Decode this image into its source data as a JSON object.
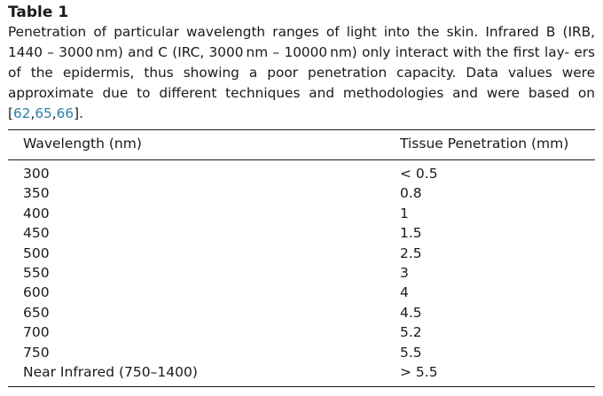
{
  "table_label": "Table 1",
  "caption": {
    "line1": "Penetration of particular wavelength ranges of light into the skin. Infrared B (IRB,",
    "line2": "1440 – 3000 nm) and C (IRC, 3000 nm – 10000 nm) only interact with the first lay-",
    "line3": "ers of the epidermis, thus showing a poor penetration capacity. Data values were",
    "line4": "approximate due to different techniques and methodologies and were based on",
    "open_bracket": "[",
    "citations": [
      "62",
      "65",
      "66"
    ],
    "close_bracket": "]."
  },
  "columns": {
    "wavelength": "Wavelength (nm)",
    "penetration": "Tissue Penetration (mm)"
  },
  "rows": [
    {
      "wavelength": "300",
      "penetration": "< 0.5"
    },
    {
      "wavelength": "350",
      "penetration": "0.8"
    },
    {
      "wavelength": "400",
      "penetration": "1"
    },
    {
      "wavelength": "450",
      "penetration": "1.5"
    },
    {
      "wavelength": "500",
      "penetration": "2.5"
    },
    {
      "wavelength": "550",
      "penetration": "3"
    },
    {
      "wavelength": "600",
      "penetration": "4"
    },
    {
      "wavelength": "650",
      "penetration": "4.5"
    },
    {
      "wavelength": "700",
      "penetration": "5.2"
    },
    {
      "wavelength": "750",
      "penetration": "5.5"
    },
    {
      "wavelength": "Near Infrared (750–1400)",
      "penetration": "> 5.5"
    }
  ],
  "colors": {
    "citation_link": "#2a7fa6",
    "text": "#1a1a1a"
  }
}
